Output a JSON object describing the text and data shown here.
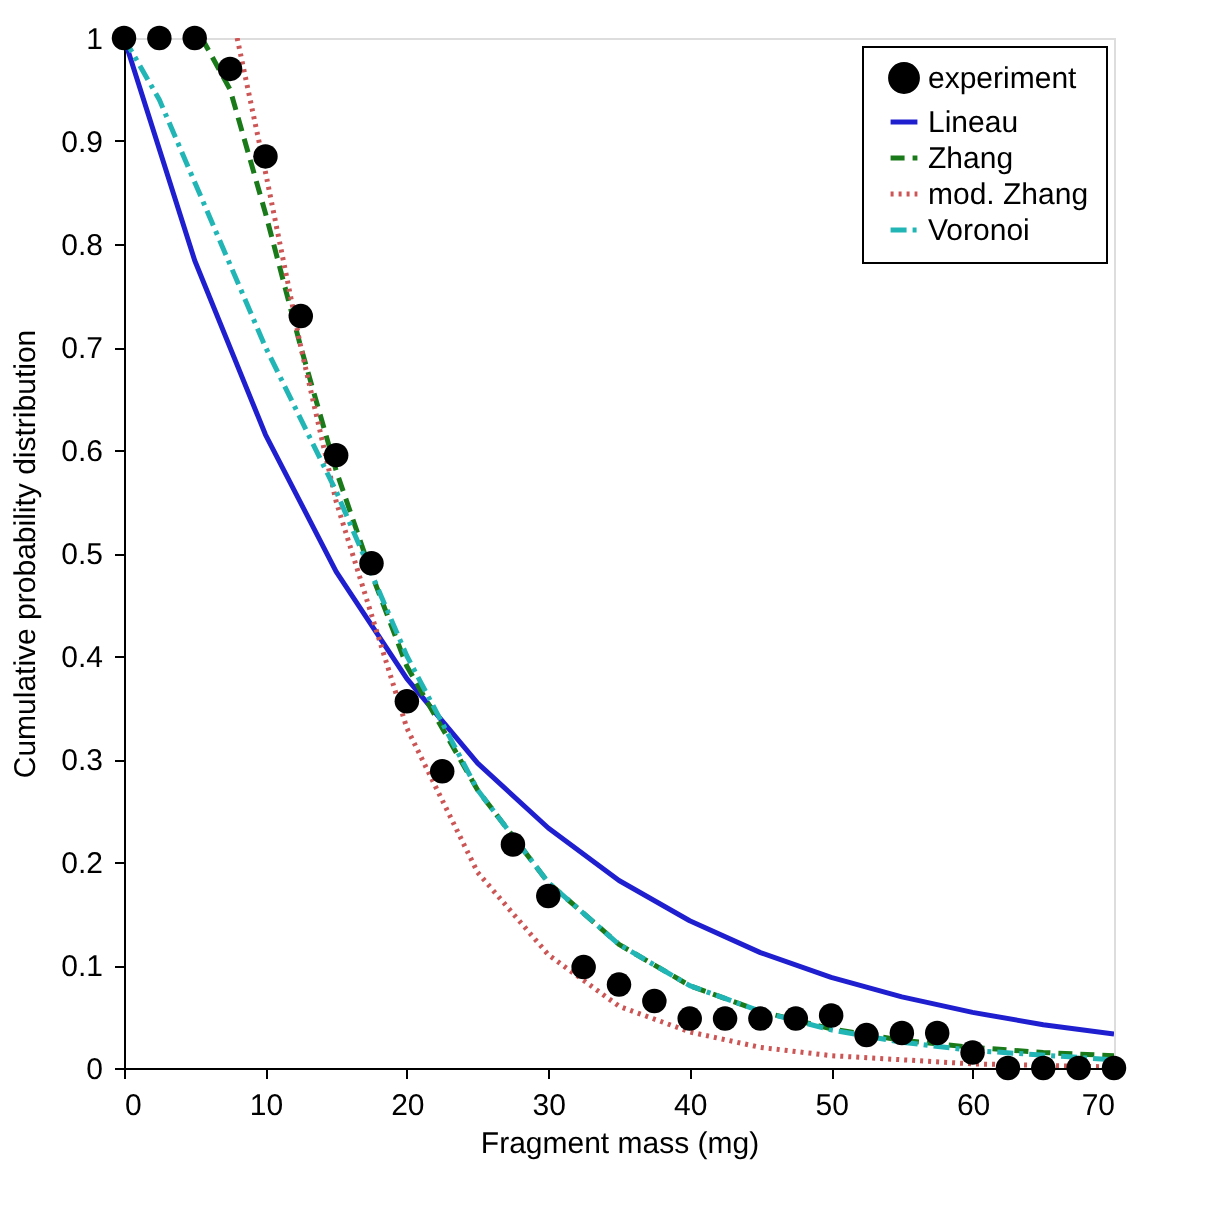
{
  "chart_data": {
    "type": "line",
    "xlabel": "Fragment mass (mg)",
    "ylabel": "Cumulative probability distribution",
    "xlim": [
      0,
      70
    ],
    "ylim": [
      0,
      1
    ],
    "xticks": [
      0,
      10,
      20,
      30,
      40,
      50,
      60,
      70
    ],
    "yticks": [
      0,
      0.1,
      0.2,
      0.3,
      0.4,
      0.5,
      0.6,
      0.7,
      0.8,
      0.9,
      1
    ],
    "grid": false,
    "legend": "top right",
    "series": [
      {
        "name": "experiment",
        "type": "scatter",
        "marker": "circle",
        "color": "#000000",
        "x": [
          0,
          2.5,
          5,
          7.5,
          10,
          12.5,
          15,
          17.5,
          20,
          22.5,
          27.5,
          30,
          32.5,
          35,
          37.5,
          40,
          42.5,
          45,
          47.5,
          50,
          52.5,
          55,
          57.5,
          60,
          62.5,
          65,
          67.5,
          70
        ],
        "values": [
          1,
          1,
          1,
          0.97,
          0.885,
          0.73,
          0.595,
          0.49,
          0.356,
          0.288,
          0.217,
          0.167,
          0.098,
          0.081,
          0.065,
          0.048,
          0.048,
          0.048,
          0.048,
          0.051,
          0.032,
          0.034,
          0.034,
          0.015,
          0,
          0,
          0,
          0
        ]
      },
      {
        "name": "Lineau",
        "line_style": "solid",
        "color": "#1f1fd0",
        "x": [
          0,
          5,
          10,
          15,
          20,
          25,
          30,
          35,
          40,
          45,
          50,
          55,
          60,
          65,
          70
        ],
        "values": [
          1,
          0.784,
          0.615,
          0.482,
          0.378,
          0.296,
          0.233,
          0.182,
          0.143,
          0.112,
          0.088,
          0.069,
          0.054,
          0.042,
          0.033
        ]
      },
      {
        "name": "Zhang",
        "line_style": "dashed",
        "color": "#1a7a1a",
        "x": [
          5.5,
          7.5,
          10,
          12.5,
          15,
          17.5,
          20,
          25,
          30,
          35,
          40,
          45,
          50,
          55,
          60,
          65,
          70
        ],
        "values": [
          1,
          0.95,
          0.83,
          0.7,
          0.58,
          0.48,
          0.39,
          0.27,
          0.18,
          0.12,
          0.08,
          0.055,
          0.038,
          0.027,
          0.02,
          0.015,
          0.012
        ]
      },
      {
        "name": "mod. Zhang",
        "line_style": "dotted",
        "color": "#cc5555",
        "x": [
          8,
          10,
          12.5,
          15,
          17.5,
          20,
          25,
          30,
          35,
          40,
          45,
          50,
          60,
          70
        ],
        "values": [
          1,
          0.87,
          0.7,
          0.55,
          0.44,
          0.33,
          0.19,
          0.11,
          0.06,
          0.035,
          0.02,
          0.012,
          0.004,
          0.001
        ]
      },
      {
        "name": "Voronoi",
        "line_style": "dashdot",
        "color": "#22b5b5",
        "x": [
          0,
          2.5,
          5,
          7.5,
          10,
          12.5,
          15,
          17.5,
          20,
          25,
          30,
          35,
          40,
          45,
          50,
          55,
          60,
          70
        ],
        "values": [
          1,
          0.94,
          0.86,
          0.78,
          0.7,
          0.63,
          0.56,
          0.48,
          0.4,
          0.27,
          0.18,
          0.12,
          0.08,
          0.055,
          0.037,
          0.025,
          0.017,
          0.008
        ]
      }
    ]
  }
}
